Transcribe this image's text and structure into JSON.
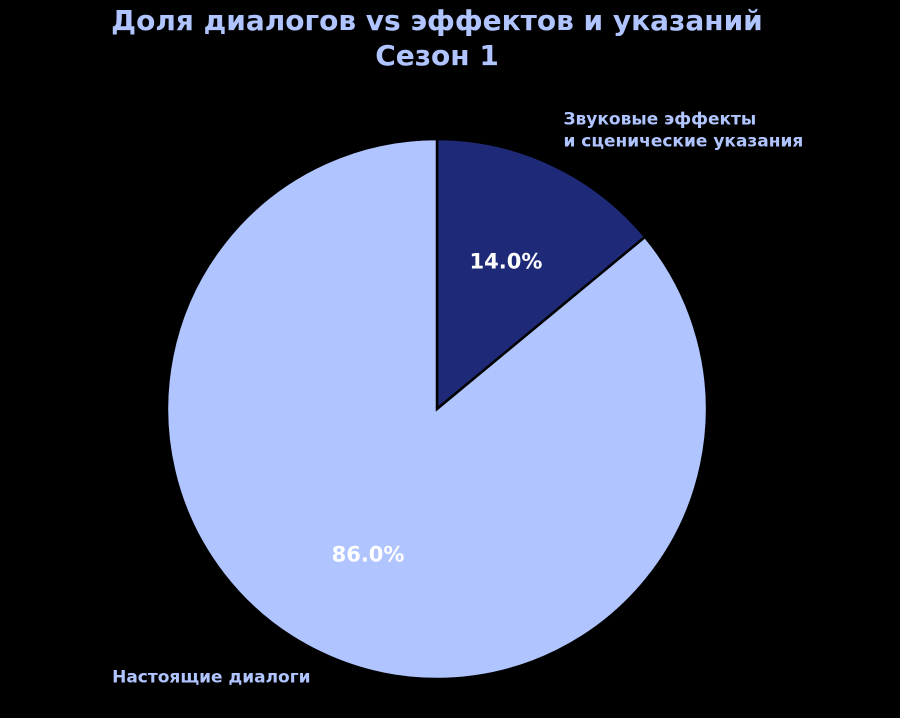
{
  "chart_data": {
    "type": "pie",
    "title": [
      "Доля диалогов vs эффектов и указаний",
      "Сезон 1"
    ],
    "categories": [
      [
        "Звуковые эффекты",
        "и сценические указания"
      ],
      "Настоящие диалоги"
    ],
    "values": [
      14.0,
      86.0
    ],
    "value_labels": [
      "14.0%",
      "86.0%"
    ],
    "colors": [
      "#1e2a78",
      "#b0c4ff"
    ]
  }
}
